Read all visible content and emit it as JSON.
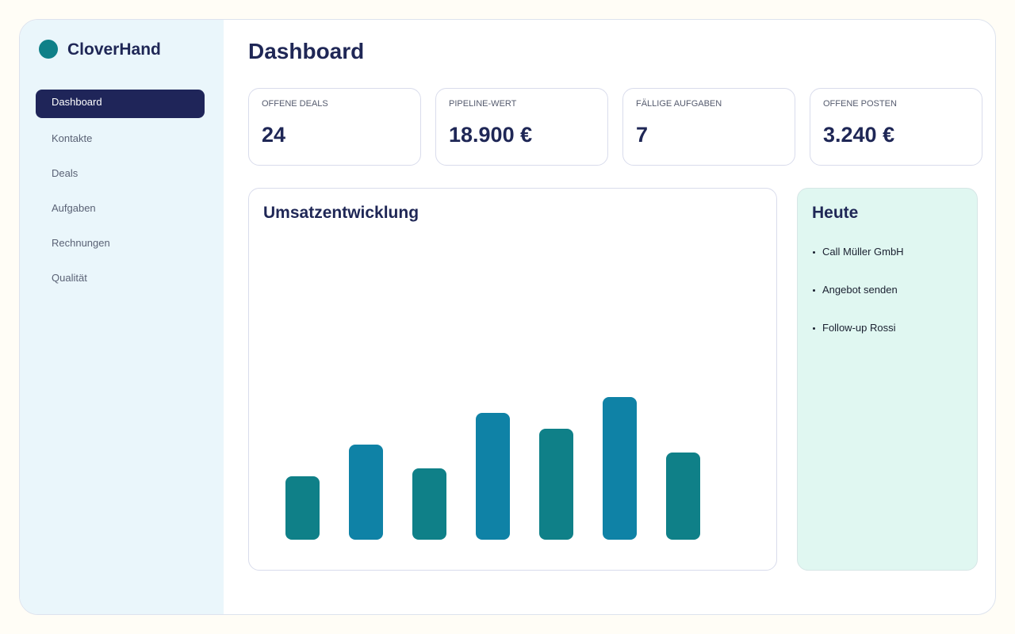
{
  "sidebar": {
    "brand": "CloverHand",
    "nav": [
      "Dashboard",
      "Kontakte",
      "Deals",
      "Aufgaben",
      "Rechnungen",
      "Qualität"
    ],
    "active": 0
  },
  "header": {
    "title": "Dashboard"
  },
  "kpis": [
    {
      "label": "OFFENE DEALS",
      "value": "24"
    },
    {
      "label": "PIPELINE-WERT",
      "value": "18.900 €"
    },
    {
      "label": "FÄLLIGE AUFGABEN",
      "value": "7"
    },
    {
      "label": "OFFENE POSTEN",
      "value": "3.240 €"
    }
  ],
  "chart": {
    "type": "bar",
    "title": "Umsatzentwicklung",
    "values": [
      80,
      120,
      90,
      160,
      140,
      180,
      110
    ],
    "colors": [
      "#0f8088",
      "#0f82a6",
      "#0f8088",
      "#0f82a6",
      "#0f8088",
      "#0f82a6",
      "#0f8088"
    ]
  },
  "today": {
    "title": "Heute",
    "items": [
      "Call Müller GmbH",
      "Angebot senden",
      "Follow-up Rossi"
    ]
  }
}
